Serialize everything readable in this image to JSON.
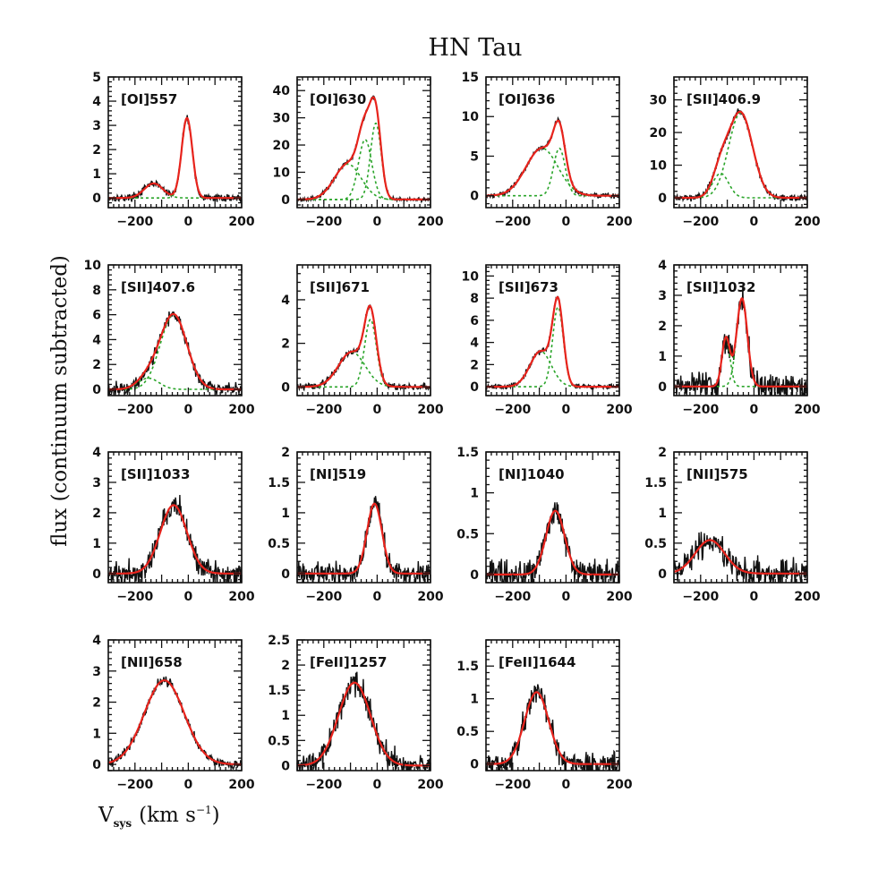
{
  "figure": {
    "title": "HN Tau",
    "ylabel": "flux (continuum subtracted)",
    "xlabel_main": "V",
    "xlabel_sub": "sys",
    "xlabel_units": "(km s",
    "xlabel_sup": "−1",
    "xlabel_close": ")"
  },
  "colors": {
    "observed": "#111111",
    "fit": "#e8231c",
    "component": "#2aa52a"
  },
  "chart_data": [
    {
      "type": "line",
      "label": "[OI]557",
      "xlim": [
        -300,
        200
      ],
      "ylim": [
        -0.4,
        5
      ],
      "xticks": [
        -200,
        0,
        200
      ],
      "yticks": [
        0,
        1,
        2,
        3,
        4,
        5
      ],
      "noise": 0.12,
      "components": [
        {
          "center": -130,
          "amp": 0.6,
          "sigma": 35
        },
        {
          "center": -5,
          "amp": 3.3,
          "sigma": 20
        }
      ]
    },
    {
      "type": "line",
      "label": "[OI]630",
      "xlim": [
        -300,
        200
      ],
      "ylim": [
        -3,
        45
      ],
      "xticks": [
        -200,
        0,
        200
      ],
      "yticks": [
        0,
        10,
        20,
        30,
        40
      ],
      "noise": 0.6,
      "components": [
        {
          "center": -110,
          "amp": 13,
          "sigma": 50
        },
        {
          "center": -45,
          "amp": 22,
          "sigma": 25
        },
        {
          "center": -5,
          "amp": 28,
          "sigma": 20
        }
      ]
    },
    {
      "type": "line",
      "label": "[OI]636",
      "xlim": [
        -300,
        200
      ],
      "ylim": [
        -1.5,
        15
      ],
      "xticks": [
        -200,
        0,
        200
      ],
      "yticks": [
        0,
        5,
        10,
        15
      ],
      "noise": 0.25,
      "components": [
        {
          "center": -90,
          "amp": 6,
          "sigma": 60
        },
        {
          "center": -25,
          "amp": 6,
          "sigma": 22
        }
      ]
    },
    {
      "type": "line",
      "label": "[SII]406.9",
      "xlim": [
        -300,
        200
      ],
      "ylim": [
        -3,
        37
      ],
      "xticks": [
        -200,
        0,
        200
      ],
      "yticks": [
        0,
        10,
        20,
        30
      ],
      "noise": 0.8,
      "components": [
        {
          "center": -125,
          "amp": 7.5,
          "sigma": 30
        },
        {
          "center": -50,
          "amp": 26,
          "sigma": 45
        }
      ]
    },
    {
      "type": "line",
      "label": "[SII]407.6",
      "xlim": [
        -300,
        200
      ],
      "ylim": [
        -0.5,
        10
      ],
      "xticks": [
        -200,
        0,
        200
      ],
      "yticks": [
        0,
        2,
        4,
        6,
        8,
        10
      ],
      "noise": 0.45,
      "components": [
        {
          "center": -150,
          "amp": 0.9,
          "sigma": 40
        },
        {
          "center": -55,
          "amp": 6,
          "sigma": 50
        }
      ]
    },
    {
      "type": "line",
      "label": "[SII]671",
      "xlim": [
        -300,
        200
      ],
      "ylim": [
        -0.4,
        5.6
      ],
      "xticks": [
        -200,
        0,
        200
      ],
      "yticks": [
        0,
        2,
        4
      ],
      "noise": 0.12,
      "components": [
        {
          "center": -95,
          "amp": 1.6,
          "sigma": 50
        },
        {
          "center": -25,
          "amp": 3.1,
          "sigma": 22
        }
      ]
    },
    {
      "type": "line",
      "label": "[SII]673",
      "xlim": [
        -300,
        200
      ],
      "ylim": [
        -0.8,
        11
      ],
      "xticks": [
        -200,
        0,
        200
      ],
      "yticks": [
        0,
        2,
        4,
        6,
        8,
        10
      ],
      "noise": 0.2,
      "components": [
        {
          "center": -95,
          "amp": 3.2,
          "sigma": 40
        },
        {
          "center": -30,
          "amp": 7.2,
          "sigma": 20
        }
      ]
    },
    {
      "type": "line",
      "label": "[SII]1032",
      "xlim": [
        -300,
        200
      ],
      "ylim": [
        -0.3,
        4
      ],
      "xticks": [
        -200,
        0,
        200
      ],
      "yticks": [
        0,
        1,
        2,
        3,
        4
      ],
      "noise": 0.35,
      "components": [
        {
          "center": -105,
          "amp": 1.6,
          "sigma": 15
        },
        {
          "center": -45,
          "amp": 2.9,
          "sigma": 20
        }
      ]
    },
    {
      "type": "line",
      "label": "[SII]1033",
      "xlim": [
        -300,
        200
      ],
      "ylim": [
        -0.3,
        4
      ],
      "xticks": [
        -200,
        0,
        200
      ],
      "yticks": [
        0,
        1,
        2,
        3,
        4
      ],
      "noise": 0.35,
      "components": [
        {
          "center": -55,
          "amp": 2.25,
          "sigma": 50
        }
      ]
    },
    {
      "type": "line",
      "label": "[NI]519",
      "xlim": [
        -300,
        200
      ],
      "ylim": [
        -0.15,
        2
      ],
      "xticks": [
        -200,
        0,
        200
      ],
      "yticks": [
        0,
        0.5,
        1,
        1.5,
        2
      ],
      "noise": 0.15,
      "components": [
        {
          "center": -10,
          "amp": 1.15,
          "sigma": 28
        }
      ]
    },
    {
      "type": "line",
      "label": "[NI]1040",
      "xlim": [
        -300,
        200
      ],
      "ylim": [
        -0.1,
        1.5
      ],
      "xticks": [
        -200,
        0,
        200
      ],
      "yticks": [
        0,
        0.5,
        1,
        1.5
      ],
      "noise": 0.15,
      "components": [
        {
          "center": -40,
          "amp": 0.78,
          "sigma": 35
        }
      ]
    },
    {
      "type": "line",
      "label": "[NII]575",
      "xlim": [
        -300,
        200
      ],
      "ylim": [
        -0.15,
        2
      ],
      "xticks": [
        -200,
        0,
        200
      ],
      "yticks": [
        0,
        0.5,
        1,
        1.5,
        2
      ],
      "noise": 0.18,
      "components": [
        {
          "center": -165,
          "amp": 0.55,
          "sigma": 55
        }
      ]
    },
    {
      "type": "line",
      "label": "[NII]658",
      "xlim": [
        -300,
        200
      ],
      "ylim": [
        -0.2,
        4
      ],
      "xticks": [
        -200,
        0,
        200
      ],
      "yticks": [
        0,
        1,
        2,
        3,
        4
      ],
      "noise": 0.12,
      "components": [
        {
          "center": -90,
          "amp": 2.7,
          "sigma": 75
        }
      ]
    },
    {
      "type": "line",
      "label": "[FeII]1257",
      "xlim": [
        -300,
        200
      ],
      "ylim": [
        -0.1,
        2.5
      ],
      "xticks": [
        -200,
        0,
        200
      ],
      "yticks": [
        0,
        0.5,
        1,
        1.5,
        2,
        2.5
      ],
      "noise": 0.2,
      "components": [
        {
          "center": -85,
          "amp": 1.65,
          "sigma": 60
        }
      ]
    },
    {
      "type": "line",
      "label": "[FeII]1644",
      "xlim": [
        -300,
        200
      ],
      "ylim": [
        -0.1,
        1.9
      ],
      "xticks": [
        -200,
        0,
        200
      ],
      "yticks": [
        0,
        0.5,
        1,
        1.5
      ],
      "noise": 0.15,
      "components": [
        {
          "center": -110,
          "amp": 1.1,
          "sigma": 45
        }
      ]
    }
  ]
}
